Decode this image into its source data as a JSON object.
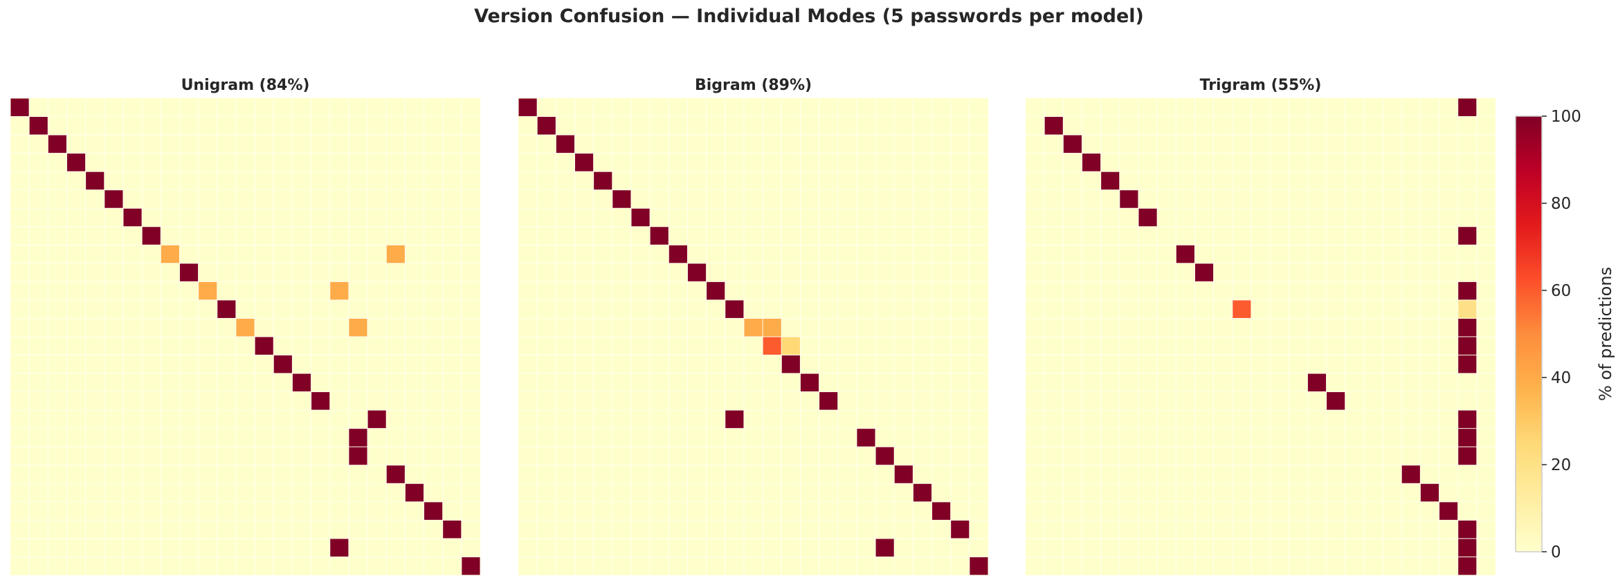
{
  "figure": {
    "title": "Version Confusion — Individual Modes  (5 passwords per model)"
  },
  "chart_data": {
    "type": "heatmap",
    "grid_size": 25,
    "value_range": [
      0,
      100
    ],
    "colormap": "YlOrRd",
    "colors": {
      "low": "#ffffcc",
      "mid": "#fd8d3c",
      "high": "#800026",
      "grid": "#ffffff"
    },
    "panels": [
      {
        "title": "Unigram  (84%)",
        "cells": [
          [
            0,
            0,
            100
          ],
          [
            1,
            1,
            100
          ],
          [
            2,
            2,
            100
          ],
          [
            3,
            3,
            100
          ],
          [
            4,
            4,
            100
          ],
          [
            5,
            5,
            100
          ],
          [
            6,
            6,
            100
          ],
          [
            7,
            7,
            100
          ],
          [
            8,
            8,
            40
          ],
          [
            8,
            20,
            40
          ],
          [
            9,
            9,
            100
          ],
          [
            10,
            10,
            40
          ],
          [
            10,
            17,
            40
          ],
          [
            11,
            11,
            100
          ],
          [
            12,
            12,
            40
          ],
          [
            12,
            18,
            40
          ],
          [
            13,
            13,
            100
          ],
          [
            14,
            14,
            100
          ],
          [
            15,
            15,
            100
          ],
          [
            16,
            16,
            100
          ],
          [
            17,
            19,
            100
          ],
          [
            18,
            18,
            100
          ],
          [
            19,
            18,
            100
          ],
          [
            20,
            20,
            100
          ],
          [
            21,
            21,
            100
          ],
          [
            22,
            22,
            100
          ],
          [
            23,
            23,
            100
          ],
          [
            24,
            17,
            100
          ],
          [
            25,
            24,
            100
          ]
        ]
      },
      {
        "title": "Bigram  (89%)",
        "cells": [
          [
            0,
            0,
            100
          ],
          [
            1,
            1,
            100
          ],
          [
            2,
            2,
            100
          ],
          [
            3,
            3,
            100
          ],
          [
            4,
            4,
            100
          ],
          [
            5,
            5,
            100
          ],
          [
            6,
            6,
            100
          ],
          [
            7,
            7,
            100
          ],
          [
            8,
            8,
            100
          ],
          [
            9,
            9,
            100
          ],
          [
            10,
            10,
            100
          ],
          [
            11,
            11,
            100
          ],
          [
            12,
            12,
            40
          ],
          [
            12,
            13,
            40
          ],
          [
            13,
            13,
            60
          ],
          [
            13,
            14,
            25
          ],
          [
            14,
            14,
            100
          ],
          [
            15,
            15,
            100
          ],
          [
            16,
            16,
            100
          ],
          [
            17,
            11,
            100
          ],
          [
            18,
            18,
            100
          ],
          [
            19,
            19,
            100
          ],
          [
            20,
            20,
            100
          ],
          [
            21,
            21,
            100
          ],
          [
            22,
            22,
            100
          ],
          [
            23,
            23,
            100
          ],
          [
            24,
            19,
            100
          ],
          [
            25,
            24,
            100
          ]
        ]
      },
      {
        "title": "Trigram  (55%)",
        "cells": [
          [
            0,
            23,
            100
          ],
          [
            1,
            1,
            100
          ],
          [
            2,
            2,
            100
          ],
          [
            3,
            3,
            100
          ],
          [
            4,
            4,
            100
          ],
          [
            5,
            5,
            100
          ],
          [
            6,
            6,
            100
          ],
          [
            7,
            23,
            100
          ],
          [
            8,
            8,
            100
          ],
          [
            9,
            9,
            100
          ],
          [
            10,
            23,
            100
          ],
          [
            11,
            11,
            60
          ],
          [
            11,
            23,
            20
          ],
          [
            12,
            23,
            100
          ],
          [
            13,
            23,
            100
          ],
          [
            14,
            23,
            100
          ],
          [
            15,
            15,
            100
          ],
          [
            16,
            16,
            100
          ],
          [
            17,
            23,
            100
          ],
          [
            18,
            23,
            100
          ],
          [
            19,
            23,
            100
          ],
          [
            20,
            20,
            100
          ],
          [
            21,
            21,
            100
          ],
          [
            22,
            22,
            100
          ],
          [
            23,
            23,
            100
          ],
          [
            24,
            23,
            100
          ],
          [
            25,
            23,
            100
          ]
        ]
      }
    ],
    "colorbar": {
      "label": "% of predictions",
      "ticks": [
        0,
        20,
        40,
        60,
        80,
        100
      ]
    }
  }
}
